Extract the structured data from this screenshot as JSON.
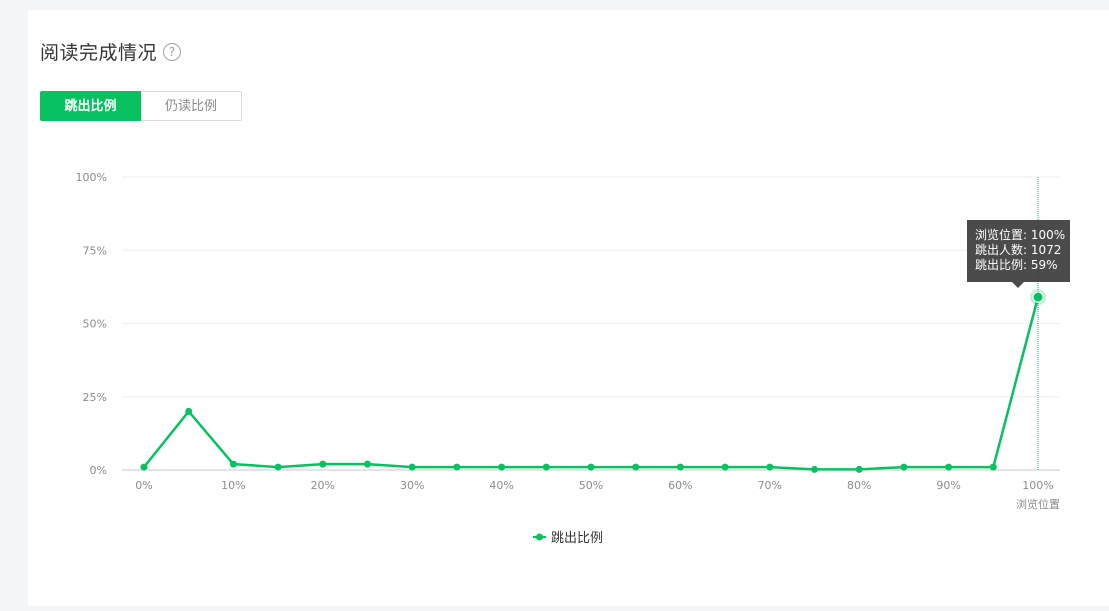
{
  "header": {
    "title": "阅读完成情况",
    "help_icon": "?"
  },
  "tabs": [
    {
      "label": "跳出比例",
      "active": true
    },
    {
      "label": "仍读比例",
      "active": false
    }
  ],
  "colors": {
    "accent": "#07c160",
    "grid": "#eeeeee",
    "tooltip_bg": "#3c3c3c"
  },
  "tooltip": {
    "line1": "浏览位置: 100%",
    "line2": "跳出人数: 1072",
    "line3": "跳出比例: 59%"
  },
  "chart_data": {
    "type": "line",
    "title": "",
    "xlabel": "浏览位置",
    "ylabel": "",
    "x": [
      0,
      5,
      10,
      15,
      20,
      25,
      30,
      35,
      40,
      45,
      50,
      55,
      60,
      65,
      70,
      75,
      80,
      85,
      90,
      95,
      100
    ],
    "x_ticks": [
      0,
      10,
      20,
      30,
      40,
      50,
      60,
      70,
      80,
      90,
      100
    ],
    "x_tick_labels": [
      "0%",
      "10%",
      "20%",
      "30%",
      "40%",
      "50%",
      "60%",
      "70%",
      "80%",
      "90%",
      "100%"
    ],
    "y_ticks": [
      0,
      25,
      50,
      75,
      100
    ],
    "y_tick_labels": [
      "0%",
      "25%",
      "50%",
      "75%",
      "100%"
    ],
    "ylim": [
      0,
      100
    ],
    "xlim": [
      0,
      100
    ],
    "grid": true,
    "legend_position": "bottom-center",
    "highlight_x": 100,
    "series": [
      {
        "name": "跳出比例",
        "values": [
          1,
          20,
          2,
          1,
          2,
          2,
          1,
          1,
          1,
          1,
          1,
          1,
          1,
          1,
          1,
          0.2,
          0.2,
          1,
          1,
          1,
          59
        ]
      }
    ]
  }
}
